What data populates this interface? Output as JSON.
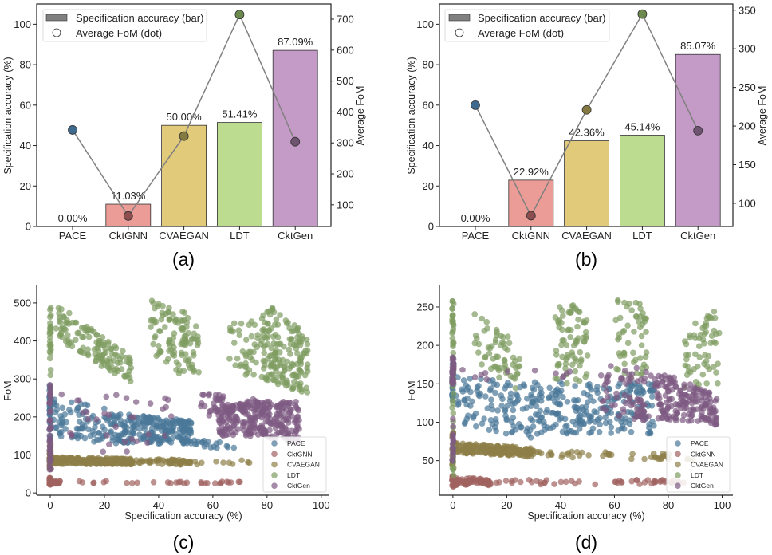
{
  "chart_data": [
    {
      "panel": "(a)",
      "type": "bar",
      "categories": [
        "PACE",
        "CktGNN",
        "CVAEGAN",
        "LDT",
        "CktGen"
      ],
      "values": [
        0.0,
        11.03,
        50.0,
        51.41,
        87.09
      ],
      "value_labels": [
        "0.00%",
        "11.03%",
        "50.00%",
        "51.41%",
        "87.09%"
      ],
      "secondary_series": {
        "name": "Average FoM (dot)",
        "type": "line",
        "values": [
          342,
          64,
          322,
          715,
          304
        ]
      },
      "ylabel": "Specification accuracy (%)",
      "ylabel_right": "Average FoM",
      "ylim": [
        0,
        110
      ],
      "ylim_right": [
        30,
        749
      ],
      "yticks": [
        0,
        20,
        40,
        60,
        80,
        100
      ],
      "yticks_right": [
        100,
        200,
        300,
        400,
        500,
        600,
        700
      ],
      "legend": [
        "Specification accuracy (bar)",
        "Average FoM (dot)"
      ],
      "legend_position": "top-left"
    },
    {
      "panel": "(b)",
      "type": "bar",
      "categories": [
        "PACE",
        "CktGNN",
        "CVAEGAN",
        "LDT",
        "CktGen"
      ],
      "values": [
        0.0,
        22.92,
        42.36,
        45.14,
        85.07
      ],
      "value_labels": [
        "0.00%",
        "22.92%",
        "42.36%",
        "45.14%",
        "85.07%"
      ],
      "secondary_series": {
        "name": "Average FoM (dot)",
        "type": "line",
        "values": [
          227,
          84,
          221,
          345,
          194
        ]
      },
      "ylabel": "Specification accuracy (%)",
      "ylabel_right": "Average FoM",
      "ylim": [
        0,
        110
      ],
      "ylim_right": [
        70,
        358
      ],
      "yticks": [
        0,
        20,
        40,
        60,
        80,
        100
      ],
      "yticks_right": [
        100,
        150,
        200,
        250,
        300,
        350
      ],
      "legend": [
        "Specification accuracy (bar)",
        "Average FoM (dot)"
      ],
      "legend_position": "top-left"
    },
    {
      "panel": "(c)",
      "type": "scatter",
      "xlabel": "Specification accuracy (%)",
      "ylabel": "FoM",
      "xlim": [
        -5,
        103
      ],
      "ylim": [
        -6,
        546
      ],
      "xticks": [
        0,
        20,
        40,
        60,
        80,
        100
      ],
      "yticks": [
        0,
        100,
        200,
        300,
        400,
        500
      ],
      "legend_position": "bottom-right",
      "series": [
        {
          "name": "PACE",
          "clusters": [
            {
              "x": [
                0,
                0
              ],
              "y0": [
                130,
                290
              ],
              "y1": [
                130,
                290
              ],
              "n": 40
            },
            {
              "x": [
                1,
                20
              ],
              "y0": [
                150,
                255
              ],
              "y1": [
                130,
                230
              ],
              "n": 70
            },
            {
              "x": [
                20,
                52
              ],
              "y0": [
                130,
                215
              ],
              "y1": [
                130,
                190
              ],
              "n": 230
            },
            {
              "x": [
                52,
                68
              ],
              "y0": [
                120,
                140
              ],
              "y1": [
                115,
                135
              ],
              "n": 18
            }
          ]
        },
        {
          "name": "CktGNN",
          "clusters": [
            {
              "x": [
                0,
                0
              ],
              "y0": [
                20,
                40
              ],
              "y1": [
                20,
                40
              ],
              "n": 25
            },
            {
              "x": [
                0,
                4
              ],
              "y0": [
                24,
                32
              ],
              "y1": [
                24,
                32
              ],
              "n": 25
            },
            {
              "x": [
                5,
                72
              ],
              "y0": [
                25,
                31
              ],
              "y1": [
                25,
                31
              ],
              "n": 30
            }
          ]
        },
        {
          "name": "CVAEGAN",
          "clusters": [
            {
              "x": [
                0,
                0
              ],
              "y0": [
                60,
                130
              ],
              "y1": [
                60,
                130
              ],
              "n": 40
            },
            {
              "x": [
                0,
                30
              ],
              "y0": [
                76,
                96
              ],
              "y1": [
                75,
                90
              ],
              "n": 220
            },
            {
              "x": [
                30,
                52
              ],
              "y0": [
                75,
                90
              ],
              "y1": [
                74,
                88
              ],
              "n": 60
            },
            {
              "x": [
                52,
                74
              ],
              "y0": [
                74,
                86
              ],
              "y1": [
                74,
                86
              ],
              "n": 10
            }
          ]
        },
        {
          "name": "LDT",
          "clusters": [
            {
              "x": [
                0,
                0
              ],
              "y0": [
                300,
                490
              ],
              "y1": [
                300,
                490
              ],
              "n": 25
            },
            {
              "x": [
                2,
                30
              ],
              "y0": [
                400,
                500
              ],
              "y1": [
                290,
                360
              ],
              "n": 130
            },
            {
              "x": [
                37,
                55
              ],
              "y0": [
                360,
                515
              ],
              "y1": [
                280,
                460
              ],
              "n": 110
            },
            {
              "x": [
                66,
                78
              ],
              "y0": [
                340,
                450
              ],
              "y1": [
                280,
                460
              ],
              "n": 40
            },
            {
              "x": [
                78,
                95
              ],
              "y0": [
                300,
                510
              ],
              "y1": [
                260,
                420
              ],
              "n": 170
            }
          ]
        },
        {
          "name": "CktGen",
          "clusters": [
            {
              "x": [
                0,
                0
              ],
              "y0": [
                60,
                290
              ],
              "y1": [
                60,
                290
              ],
              "n": 40
            },
            {
              "x": [
                1,
                45
              ],
              "y0": [
                100,
                270
              ],
              "y1": [
                100,
                270
              ],
              "n": 35
            },
            {
              "x": [
                55,
                66
              ],
              "y0": [
                200,
                262
              ],
              "y1": [
                200,
                262
              ],
              "n": 30
            },
            {
              "x": [
                62,
                76
              ],
              "y0": [
                150,
                220
              ],
              "y1": [
                150,
                250
              ],
              "n": 130
            },
            {
              "x": [
                76,
                92
              ],
              "y0": [
                150,
                245
              ],
              "y1": [
                130,
                240
              ],
              "n": 150
            }
          ]
        }
      ]
    },
    {
      "panel": "(d)",
      "type": "scatter",
      "xlabel": "Specification accuracy (%)",
      "ylabel": "FoM",
      "xlim": [
        -5,
        104
      ],
      "ylim": [
        5,
        278
      ],
      "xticks": [
        0,
        20,
        40,
        60,
        80,
        100
      ],
      "yticks": [
        50,
        100,
        150,
        200,
        250
      ],
      "legend_position": "bottom-right",
      "series": [
        {
          "name": "PACE",
          "clusters": [
            {
              "x": [
                0,
                0
              ],
              "y0": [
                128,
                185
              ],
              "y1": [
                128,
                185
              ],
              "n": 25
            },
            {
              "x": [
                1,
                30
              ],
              "y0": [
                100,
                160
              ],
              "y1": [
                75,
                150
              ],
              "n": 110
            },
            {
              "x": [
                30,
                75
              ],
              "y0": [
                85,
                155
              ],
              "y1": [
                85,
                150
              ],
              "n": 220
            }
          ]
        },
        {
          "name": "CktGNN",
          "clusters": [
            {
              "x": [
                0,
                0
              ],
              "y0": [
                16,
                30
              ],
              "y1": [
                16,
                30
              ],
              "n": 25
            },
            {
              "x": [
                0,
                14
              ],
              "y0": [
                18,
                27
              ],
              "y1": [
                18,
                27
              ],
              "n": 70
            },
            {
              "x": [
                16,
                86
              ],
              "y0": [
                19,
                25
              ],
              "y1": [
                19,
                25
              ],
              "n": 50
            }
          ]
        },
        {
          "name": "CVAEGAN",
          "clusters": [
            {
              "x": [
                0,
                0
              ],
              "y0": [
                40,
                90
              ],
              "y1": [
                40,
                90
              ],
              "n": 20
            },
            {
              "x": [
                0,
                30
              ],
              "y0": [
                60,
                74
              ],
              "y1": [
                55,
                66
              ],
              "n": 200
            },
            {
              "x": [
                30,
                90
              ],
              "y0": [
                55,
                64
              ],
              "y1": [
                50,
                58
              ],
              "n": 45
            }
          ]
        },
        {
          "name": "LDT",
          "clusters": [
            {
              "x": [
                0,
                0
              ],
              "y0": [
                30,
                265
              ],
              "y1": [
                30,
                265
              ],
              "n": 50
            },
            {
              "x": [
                8,
                25
              ],
              "y0": [
                180,
                245
              ],
              "y1": [
                140,
                200
              ],
              "n": 60
            },
            {
              "x": [
                38,
                50
              ],
              "y0": [
                150,
                255
              ],
              "y1": [
                150,
                250
              ],
              "n": 75
            },
            {
              "x": [
                60,
                72
              ],
              "y0": [
                150,
                260
              ],
              "y1": [
                160,
                255
              ],
              "n": 55
            },
            {
              "x": [
                86,
                99
              ],
              "y0": [
                140,
                220
              ],
              "y1": [
                140,
                250
              ],
              "n": 60
            }
          ]
        },
        {
          "name": "CktGen",
          "clusters": [
            {
              "x": [
                0,
                0
              ],
              "y0": [
                150,
                185
              ],
              "y1": [
                150,
                185
              ],
              "n": 30
            },
            {
              "x": [
                0,
                0
              ],
              "y0": [
                40,
                110
              ],
              "y1": [
                40,
                110
              ],
              "n": 15
            },
            {
              "x": [
                1,
                45
              ],
              "y0": [
                150,
                175
              ],
              "y1": [
                150,
                175
              ],
              "n": 12
            },
            {
              "x": [
                55,
                75
              ],
              "y0": [
                110,
                175
              ],
              "y1": [
                100,
                170
              ],
              "n": 70
            },
            {
              "x": [
                75,
                98
              ],
              "y0": [
                105,
                170
              ],
              "y1": [
                95,
                135
              ],
              "n": 170
            }
          ]
        }
      ]
    }
  ],
  "colors": {
    "bars": [
      "#cccccc",
      "#eb9c96",
      "#e1cb7a",
      "#bcdd90",
      "#c49ac6"
    ],
    "dots": [
      "#3e6a8f",
      "#8c4e4e",
      "#857942",
      "#6c8a4e",
      "#6e5470"
    ],
    "scatter": [
      "#4a7798",
      "#a0625f",
      "#8d7f47",
      "#7f9c61",
      "#7d5a82"
    ],
    "line": "#808080",
    "legend_patch": "#808080"
  }
}
